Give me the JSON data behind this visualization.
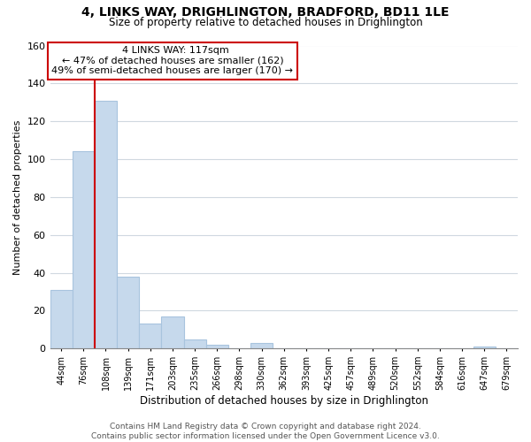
{
  "title": "4, LINKS WAY, DRIGHLINGTON, BRADFORD, BD11 1LE",
  "subtitle": "Size of property relative to detached houses in Drighlington",
  "xlabel": "Distribution of detached houses by size in Drighlington",
  "ylabel": "Number of detached properties",
  "footer_line1": "Contains HM Land Registry data © Crown copyright and database right 2024.",
  "footer_line2": "Contains public sector information licensed under the Open Government Licence v3.0.",
  "bin_labels": [
    "44sqm",
    "76sqm",
    "108sqm",
    "139sqm",
    "171sqm",
    "203sqm",
    "235sqm",
    "266sqm",
    "298sqm",
    "330sqm",
    "362sqm",
    "393sqm",
    "425sqm",
    "457sqm",
    "489sqm",
    "520sqm",
    "552sqm",
    "584sqm",
    "616sqm",
    "647sqm",
    "679sqm"
  ],
  "bar_heights": [
    31,
    104,
    131,
    38,
    13,
    17,
    5,
    2,
    0,
    3,
    0,
    0,
    0,
    0,
    0,
    0,
    0,
    0,
    0,
    1,
    0
  ],
  "bar_color": "#c6d9ec",
  "bar_edge_color": "#a8c4de",
  "ylim": [
    0,
    160
  ],
  "yticks": [
    0,
    20,
    40,
    60,
    80,
    100,
    120,
    140,
    160
  ],
  "property_line_bin_index": 2,
  "property_line_color": "#cc0000",
  "annotation_text_line1": "4 LINKS WAY: 117sqm",
  "annotation_text_line2": "← 47% of detached houses are smaller (162)",
  "annotation_text_line3": "49% of semi-detached houses are larger (170) →",
  "background_color": "#ffffff",
  "grid_color": "#d0d8e0"
}
